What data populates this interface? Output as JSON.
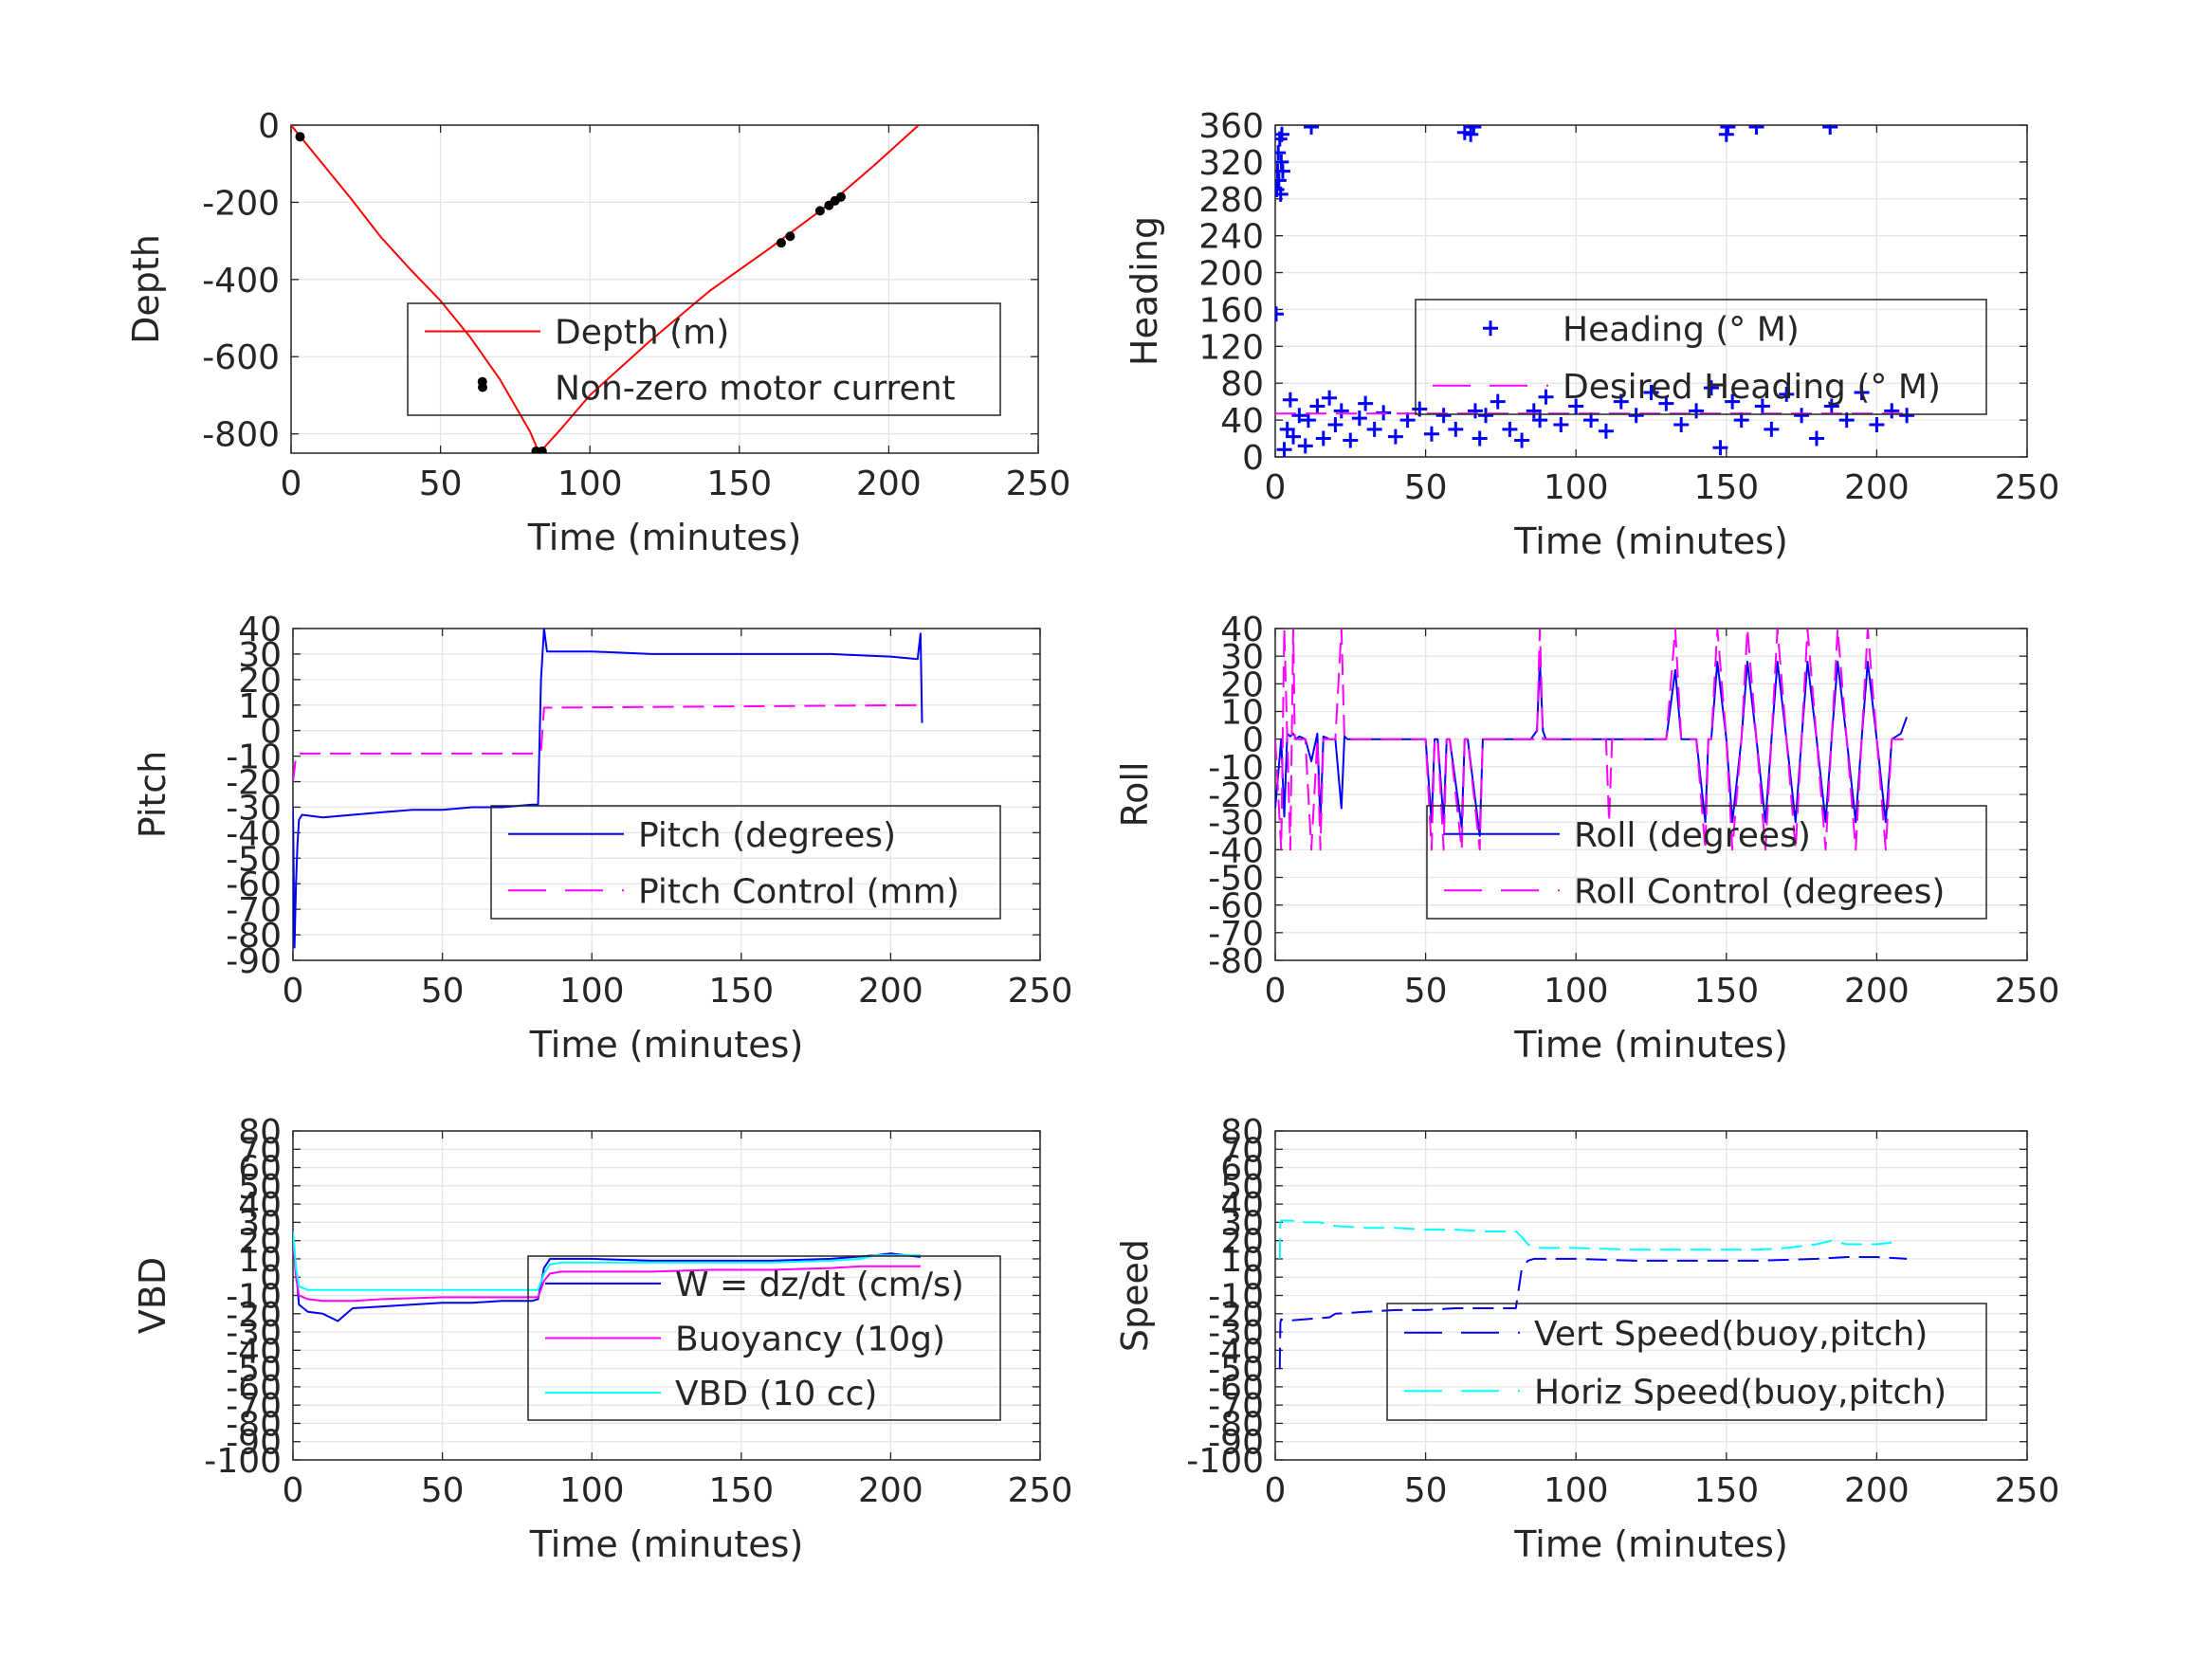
{
  "colors": {
    "red": "#ff0000",
    "blue": "#0000ff",
    "magenta": "#ff00ff",
    "cyan": "#00ffff",
    "black": "#000000",
    "grid": "#e5e5e5",
    "axis": "#262626"
  },
  "chart_data": [
    {
      "id": "depth",
      "type": "line",
      "xlabel": "Time (minutes)",
      "ylabel": "Depth",
      "xlim": [
        0,
        250
      ],
      "ylim": [
        -850,
        0
      ],
      "xticks": [
        0,
        50,
        100,
        150,
        200,
        250
      ],
      "yticks": [
        0,
        -200,
        -400,
        -600,
        -800
      ],
      "legend": "inside-center-right",
      "series": [
        {
          "name": "Depth (m)",
          "style": "line",
          "color": "red",
          "x": [
            0,
            10,
            20,
            30,
            40,
            50,
            60,
            70,
            80,
            83,
            90,
            100,
            120,
            140,
            160,
            180,
            195,
            210
          ],
          "y": [
            0,
            -95,
            -190,
            -290,
            -375,
            -455,
            -550,
            -660,
            -795,
            -850,
            -790,
            -700,
            -560,
            -430,
            -320,
            -205,
            -105,
            0
          ]
        },
        {
          "name": "Non-zero motor current",
          "style": "dots",
          "color": "black",
          "x": [
            3,
            64,
            82,
            83,
            84,
            164,
            167,
            177,
            180,
            182,
            184
          ],
          "y": [
            -30,
            -665,
            -845,
            -848,
            -845,
            -305,
            -288,
            -222,
            -208,
            -196,
            -186
          ]
        }
      ]
    },
    {
      "id": "heading",
      "type": "scatter",
      "xlabel": "Time (minutes)",
      "ylabel": "Heading",
      "xlim": [
        0,
        250
      ],
      "ylim": [
        0,
        360
      ],
      "xticks": [
        0,
        50,
        100,
        150,
        200,
        250
      ],
      "yticks": [
        0,
        40,
        80,
        120,
        160,
        200,
        240,
        280,
        320,
        360
      ],
      "legend": "inside-center-right",
      "series": [
        {
          "name": "Heading (° M)",
          "style": "plus",
          "color": "blue",
          "x": [
            0.3,
            0.5,
            0.8,
            1,
            1.2,
            1.5,
            1.8,
            2,
            2.2,
            2.5,
            3,
            4,
            5,
            6,
            8,
            10,
            11,
            12,
            14,
            16,
            18,
            20,
            22,
            25,
            28,
            30,
            33,
            36,
            40,
            44,
            48,
            52,
            56,
            60,
            63,
            65,
            66,
            66.5,
            68,
            70,
            74,
            78,
            82,
            86,
            88,
            90,
            95,
            100,
            105,
            110,
            115,
            120,
            125,
            130,
            135,
            140,
            145,
            148,
            150,
            150.5,
            152,
            155,
            160,
            162,
            165,
            170,
            175,
            180,
            184.5,
            185,
            190,
            195,
            200,
            205,
            210
          ],
          "y": [
            155,
            290,
            310,
            330,
            300,
            345,
            285,
            320,
            350,
            310,
            8,
            30,
            62,
            22,
            45,
            12,
            40,
            358,
            55,
            20,
            64,
            35,
            50,
            18,
            42,
            58,
            30,
            48,
            22,
            40,
            52,
            25,
            45,
            30,
            352,
            350,
            358,
            50,
            20,
            45,
            60,
            30,
            18,
            50,
            40,
            65,
            35,
            55,
            40,
            28,
            60,
            45,
            70,
            58,
            35,
            50,
            75,
            10,
            350,
            358,
            60,
            40,
            358,
            55,
            30,
            68,
            45,
            20,
            358,
            55,
            40,
            70,
            35,
            50,
            45
          ]
        },
        {
          "name": "Desired Heading (° M)",
          "style": "dash",
          "color": "magenta",
          "x": [
            0,
            210
          ],
          "y": [
            47,
            47
          ]
        }
      ]
    },
    {
      "id": "pitch",
      "type": "line",
      "xlabel": "Time (minutes)",
      "ylabel": "Pitch",
      "xlim": [
        0,
        250
      ],
      "ylim": [
        -90,
        40
      ],
      "xticks": [
        0,
        50,
        100,
        150,
        200,
        250
      ],
      "yticks": [
        40,
        30,
        20,
        10,
        0,
        -10,
        -20,
        -30,
        -40,
        -50,
        -60,
        -70,
        -80,
        -90
      ],
      "legend": "inside-center-right",
      "series": [
        {
          "name": "Pitch (degrees)",
          "style": "line",
          "color": "blue",
          "x": [
            0,
            0.5,
            1,
            1.5,
            2,
            3,
            10,
            20,
            30,
            40,
            50,
            60,
            70,
            80,
            82,
            83,
            84,
            85,
            90,
            100,
            120,
            140,
            160,
            180,
            200,
            209,
            210,
            210.5
          ],
          "y": [
            -30,
            -85,
            -60,
            -45,
            -35,
            -33,
            -34,
            -33,
            -32,
            -31,
            -31,
            -30,
            -30,
            -29,
            -29,
            20,
            40,
            31,
            31,
            31,
            30,
            30,
            30,
            30,
            29,
            28,
            38,
            3
          ]
        },
        {
          "name": "Pitch Control (mm)",
          "style": "dash",
          "color": "magenta",
          "x": [
            0,
            1,
            2,
            82,
            83,
            84,
            210
          ],
          "y": [
            -20,
            -10,
            -9,
            -9,
            -8,
            9,
            10
          ]
        }
      ]
    },
    {
      "id": "roll",
      "type": "line",
      "xlabel": "Time (minutes)",
      "ylabel": "Roll",
      "xlim": [
        0,
        250
      ],
      "ylim": [
        -80,
        40
      ],
      "xticks": [
        0,
        50,
        100,
        150,
        200,
        250
      ],
      "yticks": [
        40,
        30,
        20,
        10,
        0,
        -10,
        -20,
        -30,
        -40,
        -50,
        -60,
        -70,
        -80
      ],
      "legend": "inside-center-right",
      "series": [
        {
          "name": "Roll (degrees)",
          "style": "line",
          "color": "blue",
          "x": [
            0,
            2,
            3,
            4,
            5,
            6,
            7,
            8,
            10,
            12,
            14,
            15,
            16,
            18,
            20,
            22,
            23,
            24,
            30,
            40,
            50,
            52,
            53,
            54,
            56,
            57,
            58,
            62,
            63,
            64,
            68,
            69,
            70,
            80,
            85,
            87,
            88,
            89,
            90,
            100,
            110,
            120,
            130,
            133,
            135,
            140,
            143,
            144,
            145,
            147,
            150,
            152,
            155,
            157,
            160,
            163,
            165,
            167,
            170,
            173,
            175,
            177,
            180,
            183,
            185,
            187,
            190,
            193,
            195,
            197,
            200,
            203,
            205,
            208,
            210
          ],
          "y": [
            -25,
            0,
            -28,
            2,
            1,
            2,
            0,
            1,
            0,
            -8,
            2,
            -30,
            1,
            0,
            0,
            -25,
            1,
            0,
            0,
            0,
            0,
            -30,
            0,
            0,
            -30,
            0,
            0,
            -32,
            0,
            0,
            -35,
            0,
            0,
            0,
            0,
            3,
            28,
            3,
            0,
            0,
            0,
            0,
            0,
            25,
            0,
            0,
            -30,
            0,
            0,
            28,
            0,
            -30,
            0,
            28,
            0,
            -30,
            0,
            28,
            0,
            -30,
            0,
            28,
            0,
            -30,
            0,
            28,
            0,
            -30,
            0,
            28,
            0,
            -30,
            0,
            2,
            8
          ]
        },
        {
          "name": "Roll Control (degrees)",
          "style": "dash",
          "color": "magenta",
          "x": [
            0,
            2,
            3,
            4,
            5,
            6,
            6.5,
            7,
            10,
            12,
            14,
            15,
            16,
            18,
            20,
            22,
            23,
            24,
            30,
            40,
            50,
            52,
            53,
            54,
            56,
            57,
            58,
            62,
            63,
            64,
            68,
            69,
            70,
            80,
            85,
            87,
            88,
            89,
            90,
            100,
            110,
            111,
            112,
            120,
            130,
            133,
            135,
            140,
            143,
            144,
            145,
            147,
            150,
            152,
            155,
            157,
            160,
            163,
            165,
            167,
            170,
            173,
            175,
            177,
            180,
            183,
            185,
            187,
            190,
            193,
            195,
            197,
            200,
            203,
            205,
            210
          ],
          "y": [
            0,
            -40,
            40,
            0,
            -40,
            40,
            0,
            0,
            0,
            -40,
            0,
            -40,
            0,
            0,
            0,
            40,
            0,
            0,
            0,
            0,
            0,
            -40,
            0,
            0,
            -40,
            0,
            0,
            -40,
            0,
            0,
            -40,
            0,
            0,
            0,
            0,
            0,
            40,
            0,
            0,
            0,
            0,
            -30,
            0,
            0,
            0,
            40,
            0,
            0,
            -40,
            0,
            0,
            40,
            0,
            -40,
            0,
            40,
            0,
            -40,
            0,
            40,
            0,
            -40,
            0,
            40,
            0,
            -40,
            0,
            40,
            0,
            -40,
            0,
            40,
            0,
            -40,
            0,
            0
          ]
        }
      ]
    },
    {
      "id": "vbd",
      "type": "line",
      "xlabel": "Time (minutes)",
      "ylabel": "VBD",
      "xlim": [
        0,
        250
      ],
      "ylim": [
        -100,
        80
      ],
      "xticks": [
        0,
        50,
        100,
        150,
        200,
        250
      ],
      "yticks": [
        80,
        70,
        60,
        50,
        40,
        30,
        20,
        10,
        0,
        -10,
        -20,
        -30,
        -40,
        -50,
        -60,
        -70,
        -80,
        -90,
        -100
      ],
      "legend": "inside-center-right",
      "series": [
        {
          "name": "W = dz/dt (cm/s)",
          "style": "line",
          "color": "blue",
          "x": [
            0,
            1,
            2,
            5,
            10,
            15,
            20,
            30,
            40,
            50,
            60,
            70,
            80,
            82,
            84,
            86,
            90,
            100,
            120,
            140,
            160,
            180,
            195,
            200,
            205,
            210
          ],
          "y": [
            20,
            5,
            -15,
            -19,
            -20,
            -24,
            -17,
            -16,
            -15,
            -14,
            -14,
            -13,
            -13,
            -12,
            5,
            10,
            10,
            10,
            9,
            9,
            9,
            10,
            12,
            13,
            12,
            11
          ]
        },
        {
          "name": "Buoyancy (10g)",
          "style": "line",
          "color": "magenta",
          "x": [
            0,
            1,
            2,
            5,
            10,
            20,
            30,
            50,
            70,
            80,
            82,
            84,
            86,
            90,
            100,
            120,
            140,
            160,
            180,
            190,
            200,
            210
          ],
          "y": [
            20,
            0,
            -10,
            -12,
            -13,
            -13,
            -12,
            -11,
            -11,
            -11,
            -11,
            -2,
            2,
            3,
            3,
            3,
            4,
            4,
            5,
            6,
            6,
            6
          ]
        },
        {
          "name": "VBD (10 cc)",
          "style": "line",
          "color": "cyan",
          "x": [
            0,
            1,
            2,
            5,
            10,
            20,
            30,
            50,
            70,
            80,
            82,
            84,
            86,
            90,
            100,
            120,
            140,
            160,
            180,
            190,
            195,
            200,
            210
          ],
          "y": [
            25,
            5,
            -5,
            -7,
            -7,
            -7,
            -7,
            -7,
            -7,
            -7,
            -7,
            2,
            7,
            8,
            8,
            8,
            8,
            8,
            9,
            10,
            12,
            12,
            12
          ]
        }
      ]
    },
    {
      "id": "speed",
      "type": "line",
      "xlabel": "Time (minutes)",
      "ylabel": "Speed",
      "xlim": [
        0,
        250
      ],
      "ylim": [
        -100,
        80
      ],
      "xticks": [
        0,
        50,
        100,
        150,
        200,
        250
      ],
      "yticks": [
        80,
        70,
        60,
        50,
        40,
        30,
        20,
        10,
        0,
        -10,
        -20,
        -30,
        -40,
        -50,
        -60,
        -70,
        -80,
        -90,
        -100
      ],
      "legend": "inside-center-right",
      "series": [
        {
          "name": "Vert Speed(buoy,pitch)",
          "style": "dash",
          "color": "blue",
          "x": [
            1.5,
            1.7,
            2,
            3,
            10,
            18,
            20,
            30,
            40,
            50,
            60,
            70,
            80,
            82,
            84,
            86,
            90,
            100,
            120,
            140,
            160,
            180,
            190,
            200,
            210
          ],
          "y": [
            -50,
            -25,
            -23,
            -24,
            -23,
            -22,
            -20,
            -19,
            -18,
            -18,
            -17,
            -17,
            -17,
            5,
            9,
            10,
            10,
            10,
            9,
            9,
            9,
            10,
            11,
            11,
            10
          ]
        },
        {
          "name": "Horiz Speed(buoy,pitch)",
          "style": "dash",
          "color": "cyan",
          "x": [
            1.5,
            1.7,
            2,
            5,
            10,
            15,
            20,
            30,
            40,
            50,
            60,
            70,
            80,
            82,
            84,
            86,
            90,
            100,
            120,
            140,
            160,
            170,
            180,
            185,
            190,
            200,
            205
          ],
          "y": [
            10,
            30,
            31,
            31,
            30,
            30,
            28,
            27,
            27,
            26,
            26,
            25,
            25,
            22,
            18,
            16,
            16,
            16,
            15,
            15,
            15,
            16,
            18,
            20,
            18,
            18,
            19
          ]
        }
      ]
    }
  ]
}
